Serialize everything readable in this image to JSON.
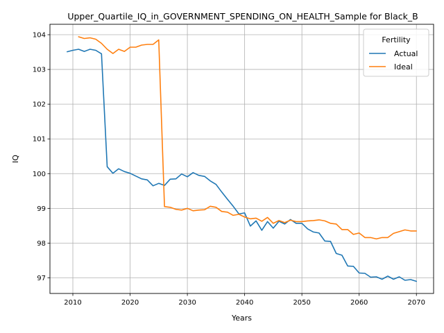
{
  "chart_data": {
    "type": "line",
    "title": "Upper_Quartile_IQ_in_GOVERNMENT_SPENDING_ON_HEALTH_Sample for Black_B",
    "xlabel": "Years",
    "ylabel": "IQ",
    "xlim": [
      2006,
      2073
    ],
    "ylim": [
      96.55,
      104.3
    ],
    "xticks": [
      2010,
      2020,
      2030,
      2040,
      2050,
      2060,
      2070
    ],
    "yticks": [
      97,
      98,
      99,
      100,
      101,
      102,
      103,
      104
    ],
    "grid": true,
    "legend": {
      "title": "Fertility",
      "placement": "top-right"
    },
    "series": [
      {
        "name": "Actual",
        "color": "#1f77b4",
        "x": [
          2009,
          2010,
          2011,
          2012,
          2013,
          2014,
          2015,
          2016,
          2017,
          2018,
          2019,
          2020,
          2021,
          2022,
          2023,
          2024,
          2025,
          2026,
          2027,
          2028,
          2029,
          2030,
          2031,
          2032,
          2033,
          2034,
          2035,
          2036,
          2037,
          2038,
          2039,
          2040,
          2041,
          2042,
          2043,
          2044,
          2045,
          2046,
          2047,
          2048,
          2049,
          2050,
          2051,
          2052,
          2053,
          2054,
          2055,
          2056,
          2057,
          2058,
          2059,
          2060,
          2061,
          2062,
          2063,
          2064,
          2065,
          2066,
          2067,
          2068,
          2069,
          2070
        ],
        "values": [
          103.51,
          103.55,
          103.58,
          103.52,
          103.58,
          103.55,
          103.45,
          100.2,
          100.01,
          100.14,
          100.06,
          100.01,
          99.93,
          99.85,
          99.82,
          99.65,
          99.72,
          99.66,
          99.84,
          99.85,
          99.99,
          99.91,
          100.03,
          99.95,
          99.92,
          99.79,
          99.69,
          99.47,
          99.26,
          99.06,
          98.84,
          98.87,
          98.49,
          98.64,
          98.37,
          98.62,
          98.43,
          98.63,
          98.55,
          98.68,
          98.57,
          98.57,
          98.41,
          98.32,
          98.29,
          98.06,
          98.05,
          97.7,
          97.65,
          97.34,
          97.33,
          97.14,
          97.13,
          97.02,
          97.03,
          96.96,
          97.05,
          96.96,
          97.03,
          96.93,
          96.95,
          96.9
        ]
      },
      {
        "name": "Ideal",
        "color": "#ff7f0e",
        "x": [
          2011,
          2012,
          2013,
          2014,
          2015,
          2016,
          2017,
          2018,
          2019,
          2020,
          2021,
          2022,
          2023,
          2024,
          2025,
          2026,
          2027,
          2028,
          2029,
          2030,
          2031,
          2032,
          2033,
          2034,
          2035,
          2036,
          2037,
          2038,
          2039,
          2040,
          2041,
          2042,
          2043,
          2044,
          2045,
          2046,
          2047,
          2048,
          2049,
          2050,
          2051,
          2052,
          2053,
          2054,
          2055,
          2056,
          2057,
          2058,
          2059,
          2060,
          2061,
          2062,
          2063,
          2064,
          2065,
          2066,
          2067,
          2068,
          2069,
          2070
        ],
        "values": [
          103.94,
          103.89,
          103.91,
          103.87,
          103.75,
          103.58,
          103.46,
          103.58,
          103.52,
          103.64,
          103.64,
          103.7,
          103.72,
          103.72,
          103.85,
          99.05,
          99.03,
          98.97,
          98.95,
          99.0,
          98.93,
          98.95,
          98.96,
          99.06,
          99.03,
          98.91,
          98.89,
          98.8,
          98.83,
          98.75,
          98.7,
          98.72,
          98.63,
          98.74,
          98.57,
          98.65,
          98.59,
          98.66,
          98.62,
          98.62,
          98.64,
          98.65,
          98.67,
          98.64,
          98.57,
          98.55,
          98.39,
          98.39,
          98.25,
          98.29,
          98.16,
          98.16,
          98.12,
          98.16,
          98.16,
          98.28,
          98.33,
          98.38,
          98.35,
          98.35
        ]
      }
    ]
  }
}
